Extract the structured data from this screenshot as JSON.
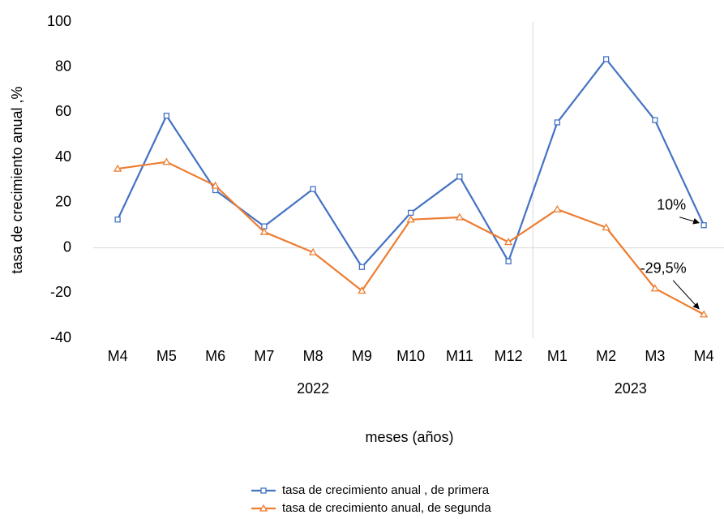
{
  "chart_data": {
    "type": "line",
    "x_label": "meses (años)",
    "y_label": "tasa de crecimiento anual ,%",
    "categories": [
      "M4",
      "M5",
      "M6",
      "M7",
      "M8",
      "M9",
      "M10",
      "M11",
      "M12",
      "M1",
      "M2",
      "M3",
      "M4"
    ],
    "category_groups": [
      {
        "label": "2022",
        "count": 9
      },
      {
        "label": "2023",
        "count": 4
      }
    ],
    "series": [
      {
        "name": "tasa de crecimiento anual , de primera",
        "color": "#4472c4",
        "marker": "square",
        "values": [
          12.5,
          58.5,
          25.5,
          9.5,
          26,
          -8.5,
          15.5,
          31.5,
          -6,
          55.5,
          83.5,
          56.5,
          10
        ],
        "value_labels": [
          null,
          null,
          null,
          null,
          null,
          null,
          null,
          null,
          null,
          null,
          null,
          null,
          "10%"
        ]
      },
      {
        "name": "tasa de crecimiento anual, de segunda",
        "color": "#ed7d31",
        "marker": "triangle",
        "values": [
          35,
          38,
          27.5,
          7,
          -2,
          -19,
          12.5,
          13.5,
          2.5,
          17,
          9,
          -18,
          -29.5
        ],
        "value_labels": [
          null,
          null,
          null,
          null,
          null,
          null,
          null,
          null,
          null,
          null,
          null,
          null,
          "-29,5%"
        ]
      }
    ],
    "ylim": [
      -40,
      100
    ],
    "yticks": [
      -40,
      -20,
      0,
      20,
      40,
      60,
      80,
      100
    ],
    "grid": false
  }
}
